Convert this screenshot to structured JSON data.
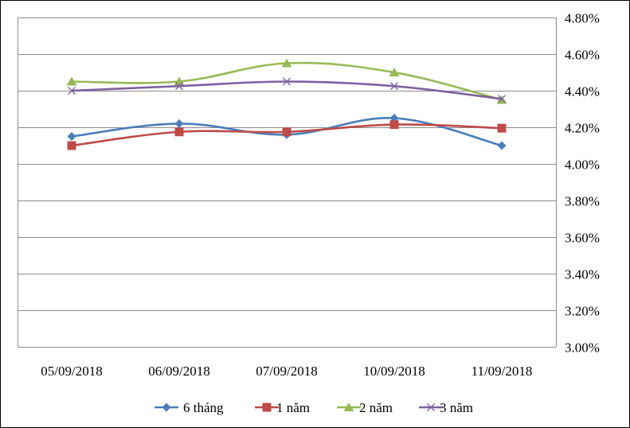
{
  "chart_data": {
    "type": "line",
    "title": "",
    "xlabel": "",
    "ylabel": "",
    "categories": [
      "05/09/2018",
      "06/09/2018",
      "07/09/2018",
      "10/09/2018",
      "11/09/2018"
    ],
    "y_axis_side": "right",
    "ylim": [
      3.0,
      4.8
    ],
    "y_ticks": [
      3.0,
      3.2,
      3.4,
      3.6,
      3.8,
      4.0,
      4.2,
      4.4,
      4.6,
      4.8
    ],
    "y_tick_labels": [
      "3.00%",
      "3.20%",
      "3.40%",
      "3.60%",
      "3.80%",
      "4.00%",
      "4.20%",
      "4.40%",
      "4.60%",
      "4.80%"
    ],
    "grid": true,
    "legend_position": "bottom",
    "series": [
      {
        "name": "6 tháng",
        "color": "#4a7ebb",
        "marker": "diamond",
        "values": [
          4.15,
          4.22,
          4.16,
          4.25,
          4.1
        ]
      },
      {
        "name": "1 năm",
        "color": "#be4b48",
        "marker": "square",
        "values": [
          4.1,
          4.175,
          4.175,
          4.215,
          4.195
        ]
      },
      {
        "name": "2 năm",
        "color": "#98b954",
        "marker": "triangle",
        "values": [
          4.45,
          4.45,
          4.55,
          4.5,
          4.35
        ]
      },
      {
        "name": "3 năm",
        "color": "#7d60a0",
        "marker": "x",
        "values": [
          4.4,
          4.425,
          4.45,
          4.425,
          4.355
        ]
      }
    ]
  }
}
